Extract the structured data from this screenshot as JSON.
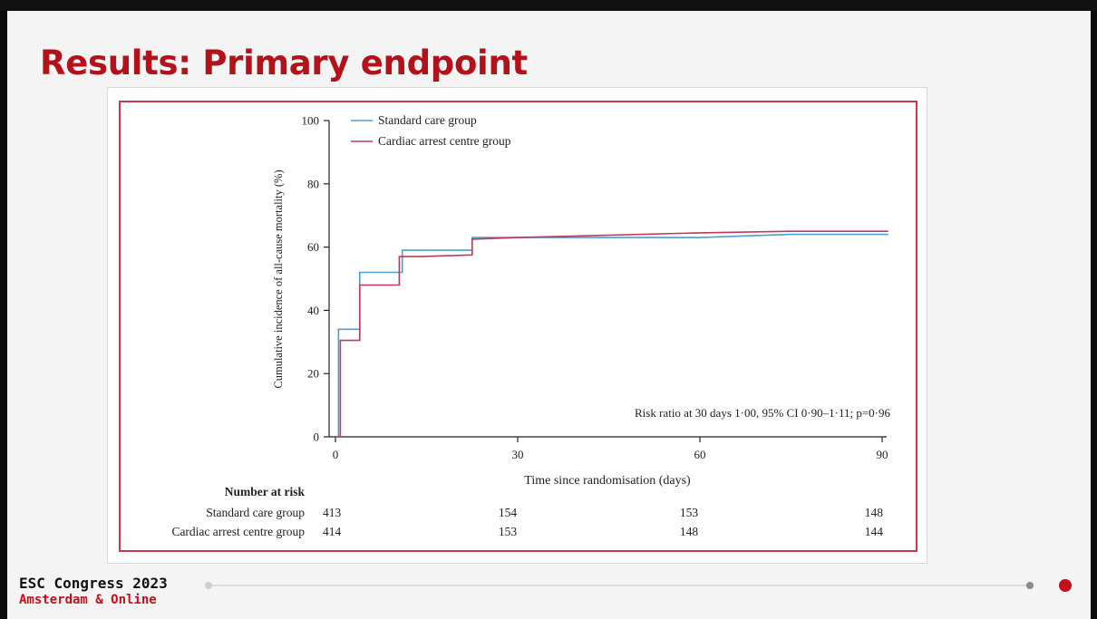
{
  "slide": {
    "title": "Results: Primary endpoint",
    "footer": {
      "congress": "ESC Congress 2023",
      "location": "Amsterdam & Online"
    }
  },
  "colors": {
    "title": "#b3121b",
    "standard_care": "#4a9fd0",
    "cardiac_arrest_centre": "#c2385a",
    "frame": "#c23a4c"
  },
  "chart_data": {
    "type": "line",
    "title": "",
    "xlabel": "Time since randomisation (days)",
    "ylabel": "Cumulative incidence of all-cause mortality (%)",
    "xlim": [
      0,
      90
    ],
    "ylim": [
      0,
      100
    ],
    "x_ticks": [
      "0",
      "30",
      "60",
      "90"
    ],
    "y_ticks": [
      "0",
      "20",
      "40",
      "60",
      "80",
      "100"
    ],
    "legend_position": "top-left",
    "annotation": "Risk ratio at 30 days 1·00, 95% CI 0·90–1·11; p=0·96",
    "series": [
      {
        "name": "Standard care group",
        "color": "#4a9fd0",
        "x": [
          0,
          0.5,
          0.5,
          4,
          4,
          11,
          11,
          22.5,
          22.5,
          30,
          60,
          75,
          91
        ],
        "y": [
          0,
          0,
          34,
          34,
          52,
          52,
          59,
          59,
          63,
          63,
          63,
          64,
          64
        ]
      },
      {
        "name": "Cardiac arrest centre group",
        "color": "#c2385a",
        "x": [
          0,
          0.8,
          0.8,
          4,
          4,
          10.5,
          10.5,
          14,
          22.5,
          22.5,
          30,
          60,
          75,
          91
        ],
        "y": [
          0,
          0,
          30.5,
          30.5,
          48,
          48,
          57,
          57,
          57.5,
          62.5,
          63,
          64.5,
          65,
          65
        ]
      }
    ],
    "number_at_risk": {
      "heading": "Number at risk",
      "rows": [
        {
          "label": "Standard care group",
          "values": [
            "413",
            "154",
            "153",
            "148"
          ]
        },
        {
          "label": "Cardiac arrest centre group",
          "values": [
            "414",
            "153",
            "148",
            "144"
          ]
        }
      ]
    }
  }
}
